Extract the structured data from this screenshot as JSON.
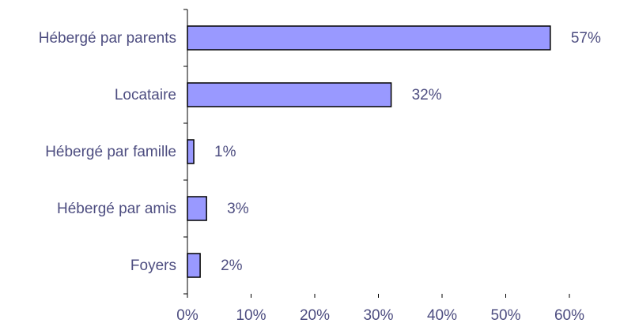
{
  "chart_data": {
    "type": "barh",
    "categories": [
      "Hébergé par parents",
      "Locataire",
      "Hébergé par famille",
      "Hébergé par amis",
      "Foyers"
    ],
    "values": [
      57,
      32,
      1,
      3,
      2
    ],
    "value_labels": [
      "57%",
      "32%",
      "1%",
      "3%",
      "2%"
    ],
    "color": "#9999ff",
    "xlim": [
      0,
      60
    ],
    "xticks": [
      {
        "value": 0,
        "label": "0%"
      },
      {
        "value": 10,
        "label": "10%"
      },
      {
        "value": 20,
        "label": "20%"
      },
      {
        "value": 30,
        "label": "30%"
      },
      {
        "value": 40,
        "label": "40%"
      },
      {
        "value": 50,
        "label": "50%"
      },
      {
        "value": 60,
        "label": "60%"
      }
    ],
    "grid": false
  }
}
